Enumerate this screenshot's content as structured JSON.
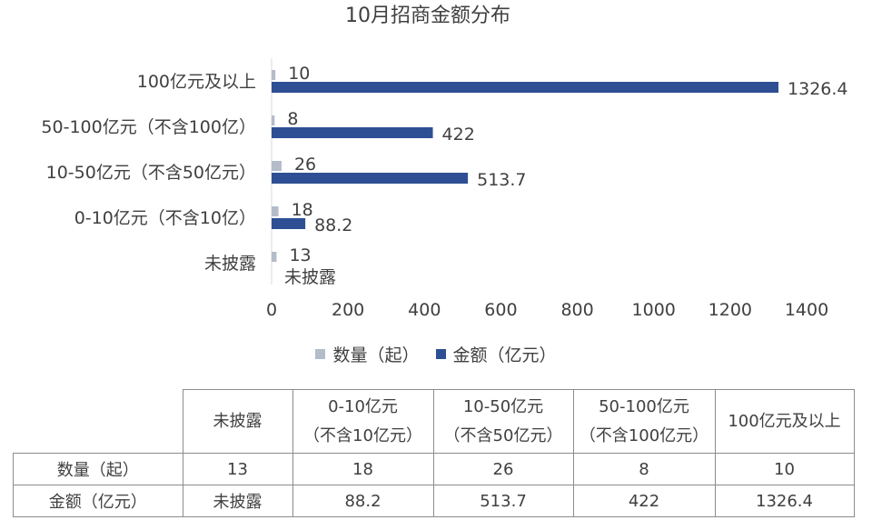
{
  "chart_data": {
    "type": "bar",
    "orientation": "horizontal",
    "title": "10月招商金额分布",
    "categories": [
      "100亿元及以上",
      "50-100亿元（不含100亿）",
      "10-50亿元（不含50亿元）",
      "0-10亿元（不含10亿）",
      "未披露"
    ],
    "series": [
      {
        "name": "数量（起）",
        "color": "#b4bcca",
        "values": [
          10,
          8,
          26,
          18,
          13
        ],
        "labels": [
          "10",
          "8",
          "26",
          "18",
          "13"
        ]
      },
      {
        "name": "金额（亿元）",
        "color": "#2e4f94",
        "values": [
          1326.4,
          422,
          513.7,
          88.2,
          null
        ],
        "labels": [
          "1326.4",
          "422",
          "513.7",
          "88.2",
          "未披露"
        ]
      }
    ],
    "xlim": [
      0,
      1400
    ],
    "xticks": [
      "0",
      "200",
      "400",
      "600",
      "800",
      "1000",
      "1200",
      "1400"
    ],
    "legend_position": "bottom",
    "grid": false
  },
  "table": {
    "header": [
      {
        "l1": "未披露",
        "l2": ""
      },
      {
        "l1": "0-10亿元",
        "l2": "（不含10亿元）"
      },
      {
        "l1": "10-50亿元",
        "l2": "（不含50亿元）"
      },
      {
        "l1": "50-100亿元",
        "l2": "（不含100亿元）"
      },
      {
        "l1": "100亿元及以上",
        "l2": ""
      }
    ],
    "rows": [
      {
        "label": "数量（起）",
        "cells": [
          "13",
          "18",
          "26",
          "8",
          "10"
        ]
      },
      {
        "label": "金额（亿元）",
        "cells": [
          "未披露",
          "88.2",
          "513.7",
          "422",
          "1326.4"
        ]
      }
    ]
  }
}
